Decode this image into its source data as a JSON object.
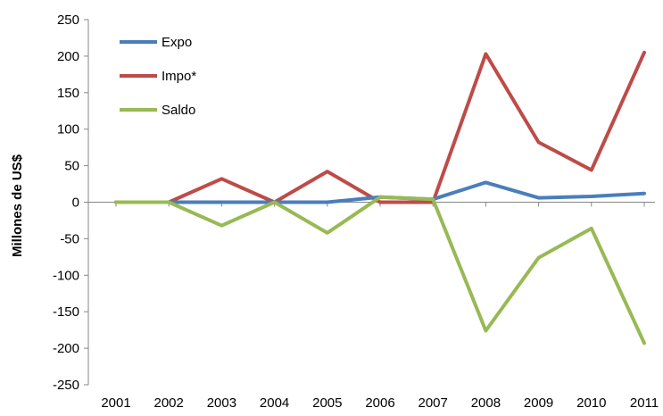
{
  "chart_data": {
    "type": "line",
    "x": [
      "2001",
      "2002",
      "2003",
      "2004",
      "2005",
      "2006",
      "2007",
      "2008",
      "2009",
      "2010",
      "2011"
    ],
    "ylabel": "Millones de US$",
    "xlabel": "",
    "title": "",
    "ylim": [
      -250,
      250
    ],
    "yticks": [
      250,
      200,
      150,
      100,
      50,
      0,
      -50,
      -100,
      -150,
      -200,
      -250
    ],
    "grid": false,
    "legend": "top-left",
    "series": [
      {
        "name": "Expo",
        "color": "#4A7EBB",
        "values": [
          0,
          0,
          0,
          0,
          0,
          7,
          4,
          27,
          6,
          8,
          12
        ]
      },
      {
        "name": "Impo*",
        "color": "#BE4B48",
        "values": [
          0,
          0,
          32,
          0,
          42,
          0,
          0,
          203,
          82,
          44,
          205
        ]
      },
      {
        "name": "Saldo",
        "color": "#98B954",
        "values": [
          0,
          0,
          -32,
          0,
          -42,
          7,
          4,
          -176,
          -76,
          -36,
          -193
        ]
      }
    ]
  }
}
